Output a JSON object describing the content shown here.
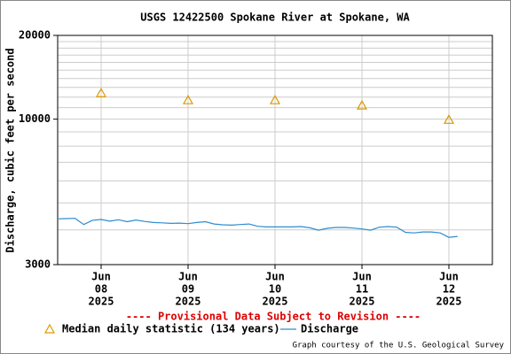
{
  "chart_data": {
    "type": "line",
    "title": "USGS 12422500 Spokane River at Spokane, WA",
    "ylabel": "Discharge, cubic feet per second",
    "annotation": "---- Provisional Data Subject to Revision ----",
    "credit": "Graph courtesy of the U.S. Geological Survey",
    "log_y": true,
    "grid": true,
    "ylim": [
      3000,
      20000
    ],
    "yticks": [
      3000,
      10000,
      20000
    ],
    "minor_yticks": [
      4000,
      5000,
      6000,
      7000,
      8000,
      9000,
      11000,
      12000,
      13000,
      14000,
      15000,
      16000,
      17000,
      18000,
      19000
    ],
    "xlim": [
      7.5,
      12.5
    ],
    "xticks": [
      {
        "value": 8,
        "label": [
          "Jun",
          "08",
          "2025"
        ]
      },
      {
        "value": 9,
        "label": [
          "Jun",
          "09",
          "2025"
        ]
      },
      {
        "value": 10,
        "label": [
          "Jun",
          "10",
          "2025"
        ]
      },
      {
        "value": 11,
        "label": [
          "Jun",
          "11",
          "2025"
        ]
      },
      {
        "value": 12,
        "label": [
          "Jun",
          "12",
          "2025"
        ]
      }
    ],
    "series": [
      {
        "name": "Median daily statistic (134 years)",
        "color": "#d99a00",
        "marker": "triangle",
        "x": [
          8,
          9,
          10,
          11,
          12
        ],
        "values": [
          12400,
          11700,
          11700,
          11200,
          9950
        ]
      },
      {
        "name": "Discharge",
        "color": "#2f8ccf",
        "marker": "line",
        "x": [
          7.5,
          7.6,
          7.7,
          7.8,
          7.9,
          8.0,
          8.1,
          8.2,
          8.3,
          8.4,
          8.5,
          8.6,
          8.7,
          8.8,
          8.9,
          9.0,
          9.1,
          9.2,
          9.3,
          9.4,
          9.5,
          9.6,
          9.7,
          9.8,
          9.9,
          10.0,
          10.1,
          10.2,
          10.3,
          10.4,
          10.5,
          10.6,
          10.7,
          10.8,
          10.9,
          11.0,
          11.1,
          11.2,
          11.3,
          11.4,
          11.5,
          11.6,
          11.7,
          11.8,
          11.9,
          12.0,
          12.1
        ],
        "values": [
          4380,
          4390,
          4400,
          4180,
          4330,
          4360,
          4300,
          4350,
          4280,
          4340,
          4290,
          4250,
          4240,
          4220,
          4230,
          4210,
          4250,
          4280,
          4200,
          4170,
          4160,
          4180,
          4200,
          4120,
          4100,
          4100,
          4100,
          4100,
          4110,
          4070,
          3990,
          4050,
          4080,
          4080,
          4060,
          4030,
          3990,
          4090,
          4110,
          4090,
          3920,
          3900,
          3930,
          3930,
          3900,
          3760,
          3790
        ]
      }
    ]
  }
}
